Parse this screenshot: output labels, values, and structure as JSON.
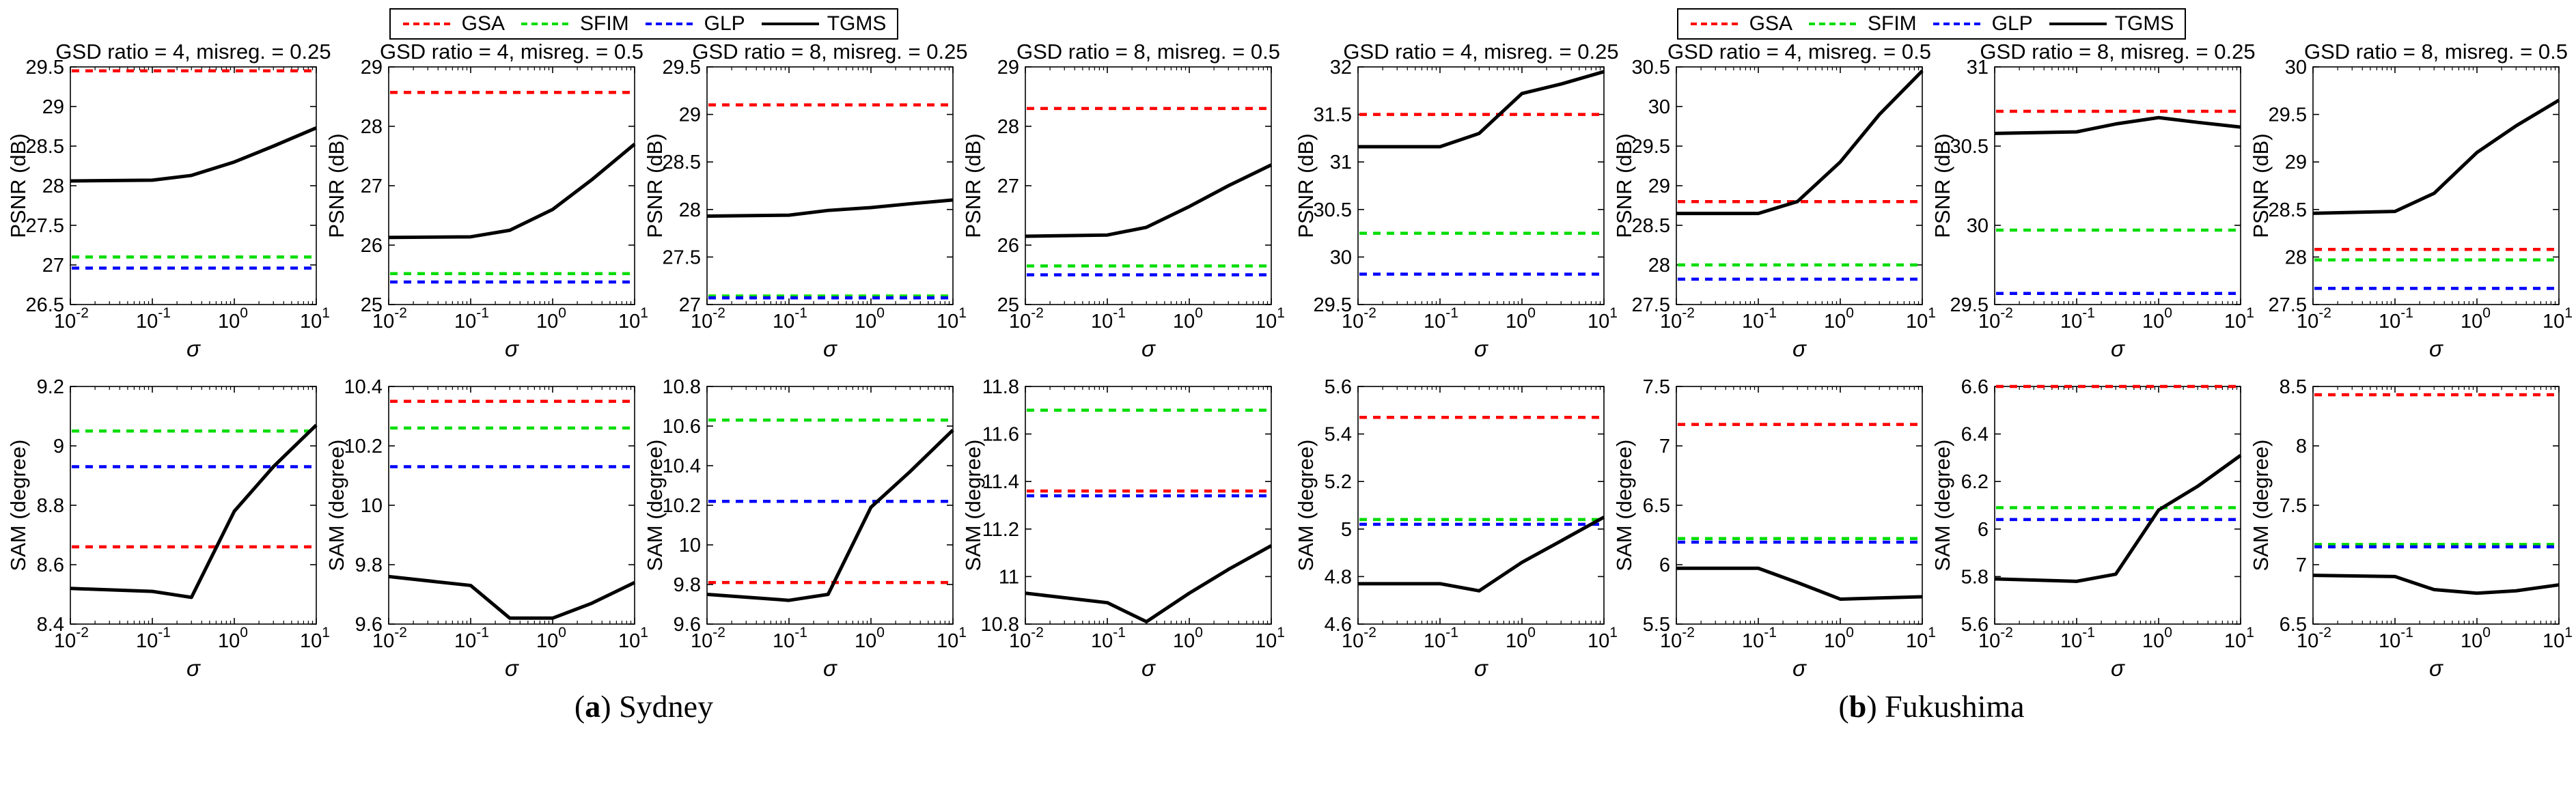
{
  "legend": {
    "items": [
      {
        "label": "GSA",
        "color": "#ff0000",
        "style": "dashed"
      },
      {
        "label": "SFIM",
        "color": "#00dd00",
        "style": "dashed"
      },
      {
        "label": "GLP",
        "color": "#0000ff",
        "style": "dashed"
      },
      {
        "label": "TGMS",
        "color": "#000000",
        "style": "solid"
      }
    ]
  },
  "captions": [
    {
      "letter": "a",
      "name": "Sydney"
    },
    {
      "letter": "b",
      "name": "Fukushima"
    }
  ],
  "chart_data": [
    {
      "group": "a",
      "dataset": "Sydney",
      "type": "line",
      "xscale": "log",
      "xlabel": "σ",
      "xlim": [
        0.01,
        10
      ],
      "xticks": [
        0.01,
        0.1,
        1,
        10
      ],
      "x": [
        0.01,
        0.1,
        0.3,
        1,
        3,
        10
      ],
      "plots": [
        {
          "title": "GSD ratio = 4, misreg. = 0.25",
          "ylabel": "PSNR (dB)",
          "ylim": [
            26.5,
            29.5
          ],
          "ytick_step": 0.5,
          "GSA": 29.45,
          "SFIM": 27.1,
          "GLP": 26.96,
          "TGMS": [
            28.06,
            28.07,
            28.13,
            28.3,
            28.5,
            28.73
          ]
        },
        {
          "title": "GSD ratio = 4, misreg. = 0.5",
          "ylabel": "PSNR (dB)",
          "ylim": [
            25,
            29
          ],
          "ytick_step": 1,
          "GSA": 28.57,
          "SFIM": 25.52,
          "GLP": 25.38,
          "TGMS": [
            26.13,
            26.14,
            26.25,
            26.6,
            27.1,
            27.7
          ]
        },
        {
          "title": "GSD ratio = 8, misreg. = 0.25",
          "ylabel": "PSNR (dB)",
          "ylim": [
            27,
            29.5
          ],
          "ytick_step": 0.5,
          "GSA": 29.1,
          "SFIM": 27.09,
          "GLP": 27.07,
          "TGMS": [
            27.93,
            27.94,
            27.99,
            28.02,
            28.06,
            28.1
          ]
        },
        {
          "title": "GSD ratio = 8, misreg. = 0.5",
          "ylabel": "PSNR (dB)",
          "ylim": [
            25,
            29
          ],
          "ytick_step": 1,
          "GSA": 28.3,
          "SFIM": 25.65,
          "GLP": 25.5,
          "TGMS": [
            26.15,
            26.17,
            26.3,
            26.65,
            27.0,
            27.35
          ]
        },
        {
          "title": "",
          "ylabel": "SAM (degree)",
          "ylim": [
            8.4,
            9.2
          ],
          "ytick_step": 0.2,
          "GSA": 8.66,
          "SFIM": 9.05,
          "GLP": 8.93,
          "TGMS": [
            8.52,
            8.51,
            8.49,
            8.78,
            8.93,
            9.07
          ]
        },
        {
          "title": "",
          "ylabel": "SAM (degree)",
          "ylim": [
            9.6,
            10.4
          ],
          "ytick_step": 0.2,
          "GSA": 10.35,
          "SFIM": 10.26,
          "GLP": 10.13,
          "TGMS": [
            9.76,
            9.73,
            9.62,
            9.62,
            9.67,
            9.74
          ]
        },
        {
          "title": "",
          "ylabel": "SAM (degree)",
          "ylim": [
            9.6,
            10.8
          ],
          "ytick_step": 0.2,
          "GSA": 9.81,
          "SFIM": 10.63,
          "GLP": 10.22,
          "TGMS": [
            9.75,
            9.72,
            9.75,
            10.19,
            10.37,
            10.58
          ]
        },
        {
          "title": "",
          "ylabel": "SAM (degree)",
          "ylim": [
            10.8,
            11.8
          ],
          "ytick_step": 0.2,
          "GSA": 11.36,
          "SFIM": 11.7,
          "GLP": 11.34,
          "TGMS": [
            10.93,
            10.89,
            10.81,
            10.93,
            11.03,
            11.13
          ]
        }
      ]
    },
    {
      "group": "b",
      "dataset": "Fukushima",
      "type": "line",
      "xscale": "log",
      "xlabel": "σ",
      "xlim": [
        0.01,
        10
      ],
      "xticks": [
        0.01,
        0.1,
        1,
        10
      ],
      "x": [
        0.01,
        0.1,
        0.3,
        1,
        3,
        10
      ],
      "plots": [
        {
          "title": "GSD ratio = 4, misreg. = 0.25",
          "ylabel": "PSNR (dB)",
          "ylim": [
            29.5,
            32
          ],
          "ytick_step": 0.5,
          "GSA": 31.5,
          "SFIM": 30.25,
          "GLP": 29.82,
          "TGMS": [
            31.16,
            31.16,
            31.3,
            31.72,
            31.82,
            31.95
          ]
        },
        {
          "title": "GSD ratio = 4, misreg. = 0.5",
          "ylabel": "PSNR (dB)",
          "ylim": [
            27.5,
            30.5
          ],
          "ytick_step": 0.5,
          "GSA": 28.8,
          "SFIM": 28.0,
          "GLP": 27.82,
          "TGMS": [
            28.65,
            28.65,
            28.8,
            29.3,
            29.9,
            30.45
          ]
        },
        {
          "title": "GSD ratio = 8, misreg. = 0.25",
          "ylabel": "PSNR (dB)",
          "ylim": [
            29.5,
            31
          ],
          "ytick_step": 0.5,
          "GSA": 30.72,
          "SFIM": 29.97,
          "GLP": 29.57,
          "TGMS": [
            30.58,
            30.59,
            30.64,
            30.68,
            30.65,
            30.62
          ]
        },
        {
          "title": "GSD ratio = 8, misreg. = 0.5",
          "ylabel": "PSNR (dB)",
          "ylim": [
            27.5,
            30
          ],
          "ytick_step": 0.5,
          "GSA": 28.08,
          "SFIM": 27.97,
          "GLP": 27.67,
          "TGMS": [
            28.46,
            28.48,
            28.67,
            29.1,
            29.38,
            29.65
          ]
        },
        {
          "title": "",
          "ylabel": "SAM (degree)",
          "ylim": [
            4.6,
            5.6
          ],
          "ytick_step": 0.2,
          "GSA": 5.47,
          "SFIM": 5.04,
          "GLP": 5.02,
          "TGMS": [
            4.77,
            4.77,
            4.74,
            4.86,
            4.95,
            5.05
          ]
        },
        {
          "title": "",
          "ylabel": "SAM (degree)",
          "ylim": [
            5.5,
            7.5
          ],
          "ytick_step": 0.5,
          "GSA": 7.18,
          "SFIM": 6.22,
          "GLP": 6.19,
          "TGMS": [
            5.97,
            5.97,
            5.85,
            5.71,
            5.72,
            5.73
          ]
        },
        {
          "title": "",
          "ylabel": "SAM (degree)",
          "ylim": [
            5.6,
            6.6
          ],
          "ytick_step": 0.2,
          "GSA": 6.6,
          "SFIM": 6.09,
          "GLP": 6.04,
          "TGMS": [
            5.79,
            5.78,
            5.81,
            6.08,
            6.18,
            6.31
          ]
        },
        {
          "title": "",
          "ylabel": "SAM (degree)",
          "ylim": [
            6.5,
            8.5
          ],
          "ytick_step": 0.5,
          "GSA": 8.43,
          "SFIM": 7.17,
          "GLP": 7.15,
          "TGMS": [
            6.91,
            6.9,
            6.79,
            6.76,
            6.78,
            6.83
          ]
        }
      ]
    }
  ]
}
